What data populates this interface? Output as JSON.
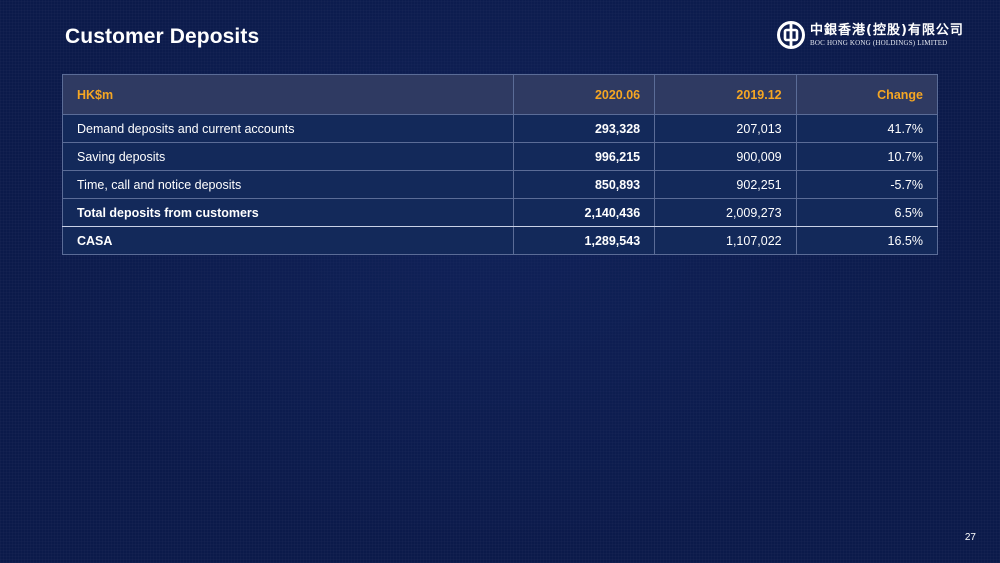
{
  "slide": {
    "title": "Customer Deposits",
    "page_number": "27"
  },
  "logo": {
    "chinese_name": "中銀香港(控股)有限公司",
    "english_name": "BOC HONG KONG (HOLDINGS) LIMITED"
  },
  "table": {
    "headers": {
      "label": "HK$m",
      "col1": "2020.06",
      "col2": "2019.12",
      "col3": "Change"
    },
    "rows": [
      {
        "label": "Demand deposits and current accounts",
        "v2020": "293,328",
        "v2019": "207,013",
        "change": "41.7%"
      },
      {
        "label": "Saving deposits",
        "v2020": "996,215",
        "v2019": "900,009",
        "change": "10.7%"
      },
      {
        "label": "Time, call and notice deposits",
        "v2020": "850,893",
        "v2019": "902,251",
        "change": "-5.7%"
      },
      {
        "label": "Total deposits from customers",
        "v2020": "2,140,436",
        "v2019": "2,009,273",
        "change": "6.5%"
      },
      {
        "label": "CASA",
        "v2020": "1,289,543",
        "v2019": "1,107,022",
        "change": "16.5%"
      }
    ]
  },
  "colors": {
    "background": "#0b1a4a",
    "header_text": "#f5a623",
    "header_background": "#2f3a62",
    "row_background": "#13295a"
  }
}
